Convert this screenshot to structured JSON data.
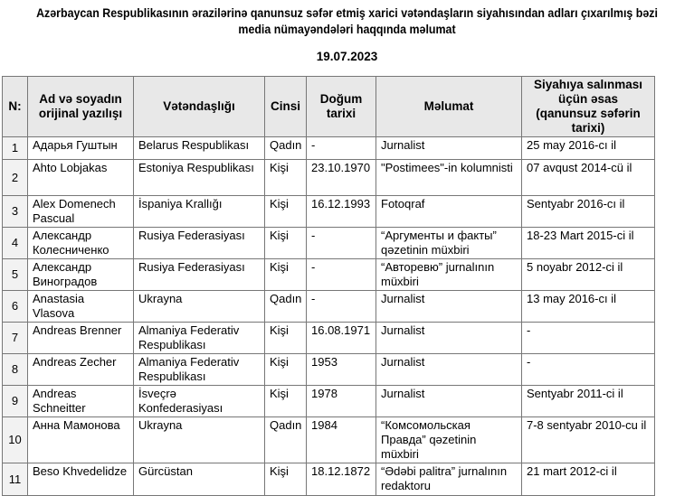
{
  "title": "Azərbaycan Respublikasının ərazilərinə qanunsuz səfər etmiş xarici vətəndaşların siyahısından adları çıxarılmış bəzi media nümayəndələri haqqında məlumat",
  "date": "19.07.2023",
  "table": {
    "headers": [
      "N:",
      "Ad və soyadın orijinal yazılışı",
      "Vətəndaşlığı",
      "Cinsi",
      "Doğum tarixi",
      "Məlumat",
      "Siyahıya salınması üçün əsas (qanunsuz səfərin tarixi)"
    ],
    "rows": [
      [
        "1",
        "Адарья Гуштын",
        "Belarus Respublikası",
        "Qadın",
        "-",
        "Jurnalist",
        "25 may 2016-cı il"
      ],
      [
        "2",
        "Ahto Lobjakas",
        "Estoniya Respublikası",
        "Kişi",
        "23.10.1970",
        "\"Postimees\"-in kolumnisti",
        "07 avqust 2014-cü il"
      ],
      [
        "3",
        "Alex Domenech Pascual",
        "İspaniya Krallığı",
        "Kişi",
        "16.12.1993",
        "Fotoqraf",
        "Sentyabr 2016-cı il"
      ],
      [
        "4",
        "Александр Колесниченко",
        "Rusiya Federasiyası",
        "Kişi",
        "-",
        "“Аргументы и факты” qəzetinin müxbiri",
        "18-23 Mart 2015-ci il"
      ],
      [
        "5",
        "Александр Виноградов",
        "Rusiya Federasiyası",
        "Kişi",
        "-",
        "“Авторевю” jurnalının müxbiri",
        "5 noyabr 2012-ci il"
      ],
      [
        "6",
        "Anastasia Vlasova",
        "Ukrayna",
        "Qadın",
        "-",
        "Jurnalist",
        "13 may 2016-cı il"
      ],
      [
        "7",
        "Andreas Brenner",
        "Almaniya Federativ Respublikası",
        "Kişi",
        "16.08.1971",
        "Jurnalist",
        "-"
      ],
      [
        "8",
        "Andreas Zecher",
        "Almaniya Federativ Respublikası",
        "Kişi",
        "1953",
        "Jurnalist",
        "-"
      ],
      [
        "9",
        "Andreas Schneitter",
        "İsveçrə Konfederasiyası",
        "Kişi",
        "1978",
        "Jurnalist",
        "Sentyabr 2011-ci il"
      ],
      [
        "10",
        "Анна Мамонова",
        "Ukrayna",
        "Qadın",
        "1984",
        "“Комсомольская Правда” qəzetinin müxbiri",
        "7-8 sentyabr 2010-cu il"
      ],
      [
        "11",
        "Beso Khvedelidze",
        "Gürcüstan",
        "Kişi",
        "18.12.1872",
        "“Ədəbi palitra” jurnalının redaktoru",
        "21 mart 2012-ci il"
      ]
    ]
  }
}
